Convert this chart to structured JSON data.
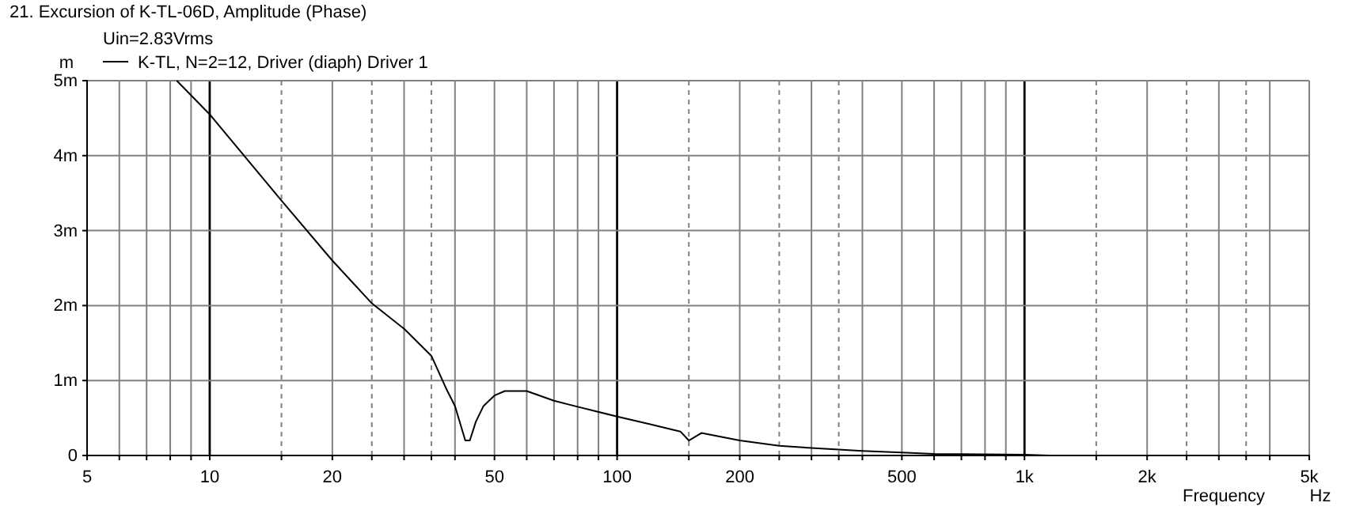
{
  "chart_data": {
    "type": "line",
    "title": "21. Excursion of K-TL-06D, Amplitude (Phase)",
    "subtitle": "Uin=2.83Vrms",
    "ylabel": "m",
    "xlabel": "Frequency",
    "annotations": [
      "Hz"
    ],
    "log": "x",
    "grid": true,
    "legend": "top left",
    "marker": "none",
    "line_style": "solid",
    "xlim": [
      5,
      5000
    ],
    "ylim": [
      0,
      5
    ],
    "xticks": [
      5,
      {
        "value": 6,
        "label": null
      },
      {
        "value": 7,
        "label": null
      },
      {
        "value": 8,
        "label": null
      },
      {
        "value": 9,
        "label": null
      },
      10,
      {
        "value": 15,
        "label": null
      },
      20,
      {
        "value": 25,
        "label": null
      },
      {
        "value": 30,
        "label": null
      },
      {
        "value": 35,
        "label": null
      },
      {
        "value": 40,
        "label": null
      },
      50,
      {
        "value": 60,
        "label": null
      },
      {
        "value": 70,
        "label": null
      },
      {
        "value": 80,
        "label": null
      },
      {
        "value": 90,
        "label": null
      },
      100,
      {
        "value": 150,
        "label": null
      },
      200,
      {
        "value": 250,
        "label": null
      },
      {
        "value": 300,
        "label": null
      },
      {
        "value": 350,
        "label": null
      },
      {
        "value": 400,
        "label": null
      },
      500,
      {
        "value": 600,
        "label": null
      },
      {
        "value": 700,
        "label": null
      },
      {
        "value": 800,
        "label": null
      },
      {
        "value": 900,
        "label": null
      },
      {
        "value": 1000,
        "label": "1k"
      },
      {
        "value": 1500,
        "label": null
      },
      {
        "value": 2000,
        "label": "2k"
      },
      {
        "value": 2500,
        "label": null
      },
      {
        "value": 3000,
        "label": null
      },
      {
        "value": 3500,
        "label": null
      },
      {
        "value": 4000,
        "label": null
      },
      {
        "value": 5000,
        "label": "5k"
      }
    ],
    "yticks": [
      0,
      {
        "value": 1,
        "label": "1m"
      },
      {
        "value": 2,
        "label": "2m"
      },
      {
        "value": 3,
        "label": "3m"
      },
      {
        "value": 4,
        "label": "4m"
      },
      {
        "value": 5,
        "label": "5m"
      }
    ],
    "series": [
      {
        "name": "K-TL, N=2=12, Driver (diaph) Driver 1",
        "color": "#000000",
        "x": [
          8.3,
          10,
          15,
          20,
          25,
          30,
          35,
          38,
          40,
          42.4,
          43.5,
          45,
          47,
          50,
          53,
          60,
          70,
          80,
          100,
          120,
          143,
          150,
          161,
          200,
          250,
          300,
          400,
          500,
          600,
          1000,
          1150
        ],
        "values": [
          5,
          4.55,
          3.4,
          2.6,
          2.03,
          1.69,
          1.33,
          0.9,
          0.66,
          0.2,
          0.2,
          0.45,
          0.66,
          0.8,
          0.86,
          0.86,
          0.73,
          0.65,
          0.52,
          0.42,
          0.32,
          0.2,
          0.3,
          0.2,
          0.13,
          0.1,
          0.06,
          0.04,
          0.02,
          0.01,
          0
        ]
      }
    ]
  }
}
